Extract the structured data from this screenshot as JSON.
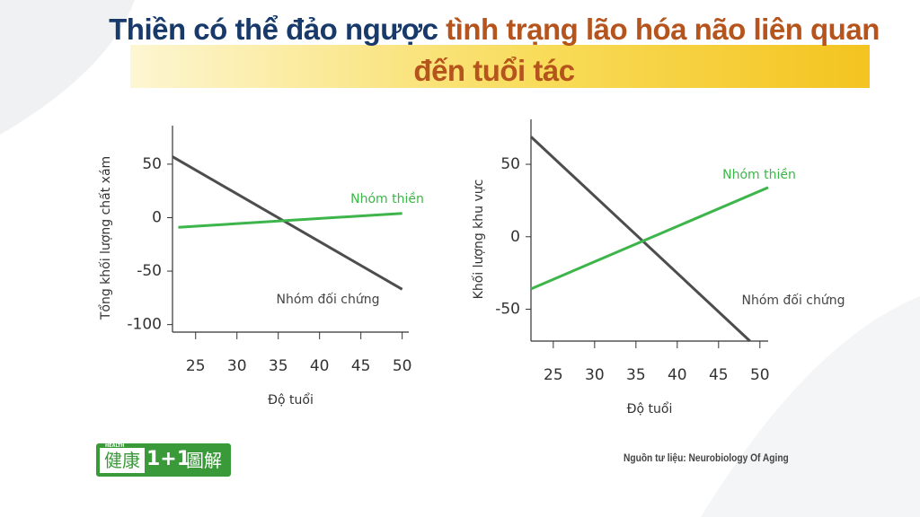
{
  "header": {
    "title_part1": "Thiền có thể đảo ngược",
    "title_part2": "tình trạng lão hóa não liên quan đến tuổi tác"
  },
  "chart_data": [
    {
      "type": "line",
      "x_label": "Độ tuổi",
      "y_label": "Tổng khối lượng chất xám",
      "xlim": [
        22.2,
        50.8
      ],
      "xticks": [
        25,
        30,
        35,
        40,
        45,
        50
      ],
      "ylim": [
        -107,
        86
      ],
      "yticks": [
        50,
        0,
        -50,
        -100
      ],
      "series": [
        {
          "name": "Nhóm đối chứng",
          "color": "#4d4d4f",
          "x": [
            22.2,
            50
          ],
          "values": [
            57,
            -67
          ]
        },
        {
          "name": "Nhóm thiền",
          "color": "#3db54a",
          "x": [
            22.9,
            50
          ],
          "values": [
            -9,
            4
          ]
        }
      ]
    },
    {
      "type": "line",
      "x_label": "Độ tuổi",
      "y_label": "Khối lượng khu vực",
      "xlim": [
        22.3,
        51
      ],
      "xticks": [
        25,
        30,
        35,
        40,
        45,
        50
      ],
      "ylim": [
        -72,
        81
      ],
      "yticks": [
        50,
        0,
        -50
      ],
      "series": [
        {
          "name": "Nhóm đối chứng",
          "color": "#4d4d4f",
          "x": [
            22.3,
            48.8
          ],
          "values": [
            69,
            -72
          ]
        },
        {
          "name": "Nhóm thiền",
          "color": "#3db54a",
          "x": [
            22.3,
            51
          ],
          "values": [
            -36,
            34
          ]
        }
      ]
    }
  ],
  "logo": {
    "small": "HEALTH",
    "cn": "健康",
    "num": "1+1",
    "suffix": "圖解"
  },
  "source": "Nguồn tư liệu: Neurobiology Of Aging"
}
